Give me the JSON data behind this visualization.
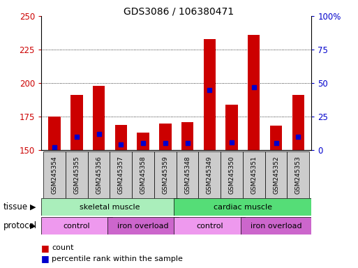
{
  "title": "GDS3086 / 106380471",
  "samples": [
    "GSM245354",
    "GSM245355",
    "GSM245356",
    "GSM245357",
    "GSM245358",
    "GSM245359",
    "GSM245348",
    "GSM245349",
    "GSM245350",
    "GSM245351",
    "GSM245352",
    "GSM245353"
  ],
  "count_values": [
    175,
    191,
    198,
    169,
    163,
    170,
    171,
    233,
    184,
    236,
    168,
    191
  ],
  "percentile_values": [
    2,
    10,
    12,
    4,
    5,
    5,
    5,
    45,
    6,
    47,
    5,
    10
  ],
  "y_min": 150,
  "y_max": 250,
  "y_ticks": [
    150,
    175,
    200,
    225,
    250
  ],
  "y2_ticks": [
    0,
    25,
    50,
    75,
    100
  ],
  "bar_color": "#cc0000",
  "percentile_color": "#0000cc",
  "tissue_groups": [
    {
      "label": "skeletal muscle",
      "start": 0,
      "end": 6,
      "color": "#aaeebb"
    },
    {
      "label": "cardiac muscle",
      "start": 6,
      "end": 12,
      "color": "#55dd77"
    }
  ],
  "protocol_groups": [
    {
      "label": "control",
      "start": 0,
      "end": 3,
      "color": "#ee99ee"
    },
    {
      "label": "iron overload",
      "start": 3,
      "end": 6,
      "color": "#cc66cc"
    },
    {
      "label": "control",
      "start": 6,
      "end": 9,
      "color": "#ee99ee"
    },
    {
      "label": "iron overload",
      "start": 9,
      "end": 12,
      "color": "#cc66cc"
    }
  ],
  "legend_count_label": "count",
  "legend_percentile_label": "percentile rank within the sample",
  "bar_color_legend": "#cc0000",
  "percentile_color_legend": "#0000cc",
  "axis_color_left": "#cc0000",
  "axis_color_right": "#0000cc",
  "bar_width": 0.55,
  "xtick_bg_color": "#cccccc",
  "fig_bg": "#ffffff"
}
